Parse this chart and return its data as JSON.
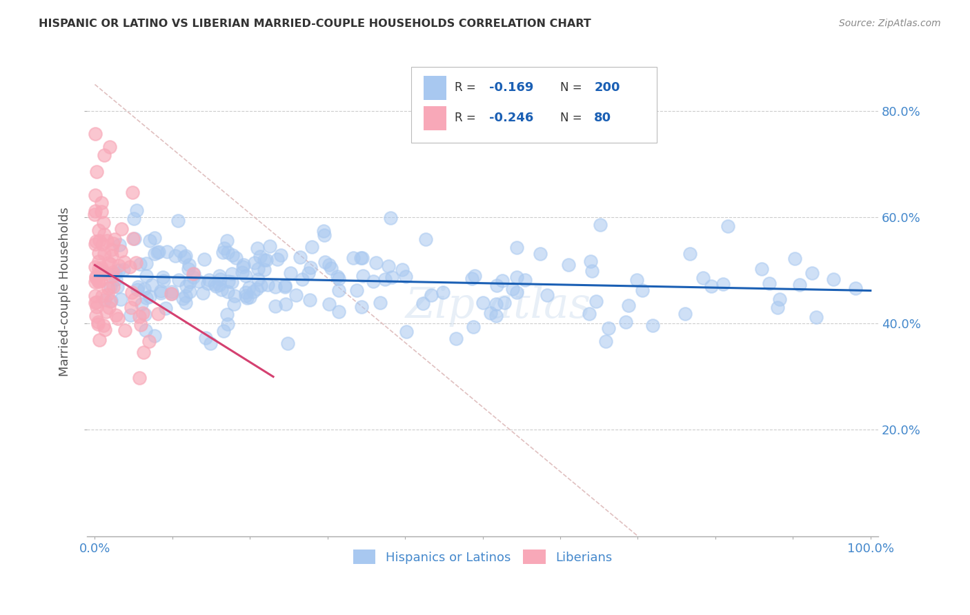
{
  "title": "HISPANIC OR LATINO VS LIBERIAN MARRIED-COUPLE HOUSEHOLDS CORRELATION CHART",
  "source": "Source: ZipAtlas.com",
  "ylabel": "Married-couple Households",
  "legend_labels": [
    "Hispanics or Latinos",
    "Liberians"
  ],
  "watermark": "Zip atlas",
  "blue_color": "#a8c8f0",
  "pink_color": "#f8a8b8",
  "blue_line_color": "#1a5fb4",
  "pink_line_color": "#d44070",
  "blue_R": -0.169,
  "blue_N": 200,
  "pink_R": -0.246,
  "pink_N": 80,
  "title_color": "#333333",
  "axis_label_color": "#4488cc",
  "background_color": "#ffffff",
  "grid_color": "#cccccc",
  "diag_color": "#ddbbbb",
  "blue_trend_x0": 0.0,
  "blue_trend_y0": 0.49,
  "blue_trend_x1": 1.0,
  "blue_trend_y1": 0.462,
  "pink_trend_x0": 0.0,
  "pink_trend_y0": 0.51,
  "pink_trend_x1": 0.23,
  "pink_trend_y1": 0.3,
  "ylim_min": 0.0,
  "ylim_max": 0.92,
  "xlim_min": -0.01,
  "xlim_max": 1.01
}
